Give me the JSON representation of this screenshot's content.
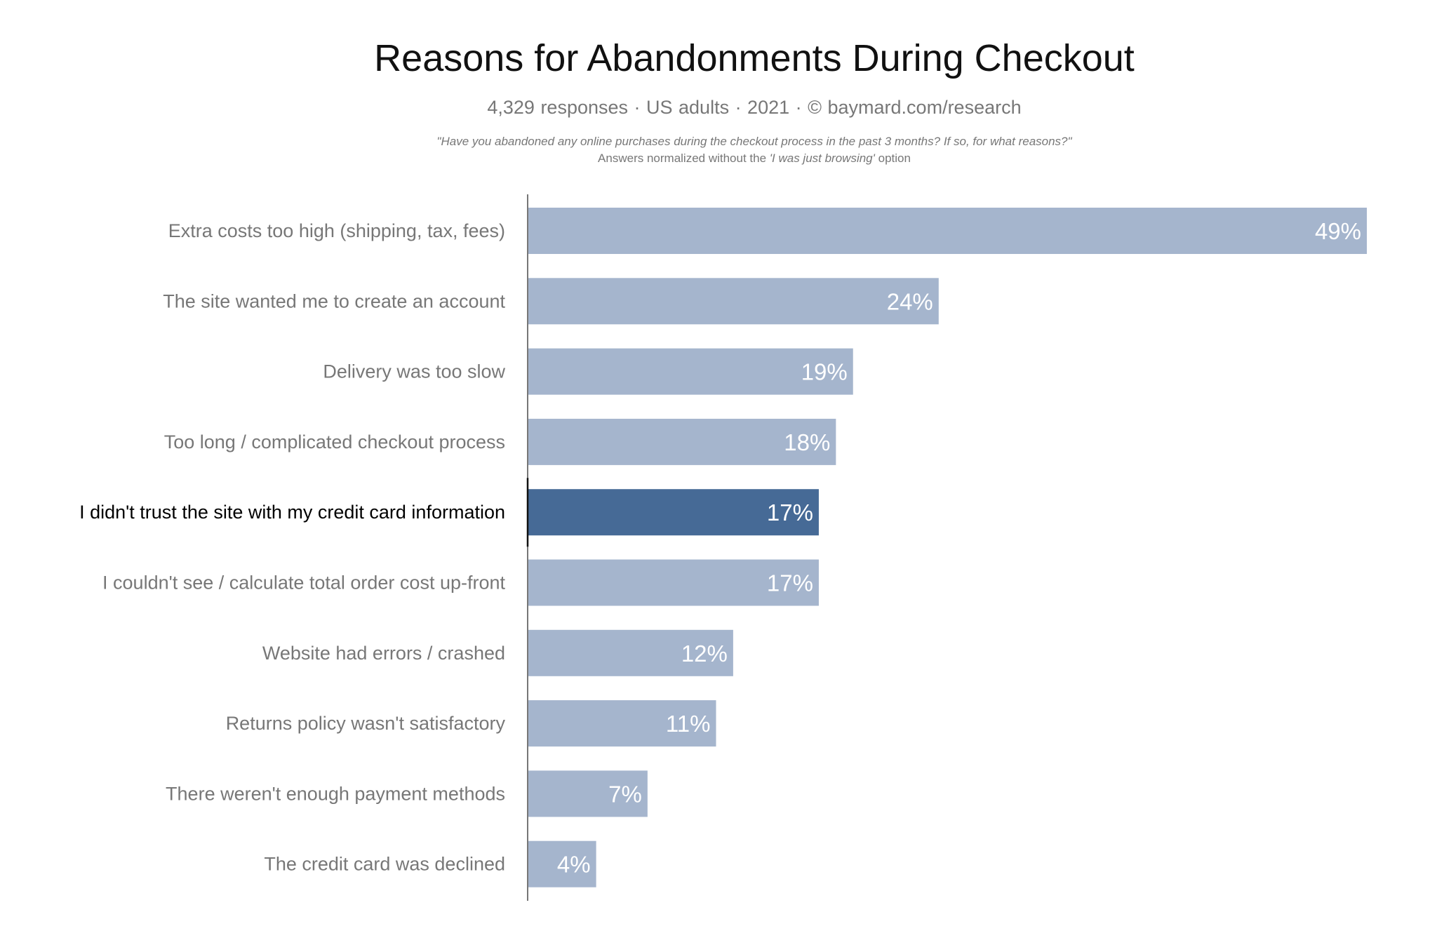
{
  "header": {
    "title": "Reasons for Abandonments During Checkout",
    "subtitle": "4,329 responses  ·  US adults  ·  2021  ·  ©  baymard.com/research",
    "question": "\"Have you abandoned any online purchases during the checkout process in the past 3 months? If so, for what reasons?\"",
    "note_prefix": "Answers normalized without the ",
    "note_italic": "'I was just browsing'",
    "note_suffix": " option"
  },
  "chart_data": {
    "type": "bar",
    "orientation": "horizontal",
    "title": "Reasons for Abandonments During Checkout",
    "categories": [
      "Extra costs too high (shipping, tax, fees)",
      "The site wanted me to create an account",
      "Delivery was too slow",
      "Too long / complicated checkout process",
      "I didn't trust the site with my credit card information",
      "I couldn't see / calculate total order cost up-front",
      "Website had errors / crashed",
      "Returns policy wasn't satisfactory",
      "There weren't enough payment methods",
      "The credit card was declined"
    ],
    "values": [
      49,
      24,
      19,
      18,
      17,
      17,
      12,
      11,
      7,
      4
    ],
    "data_labels": [
      "49%",
      "24%",
      "19%",
      "18%",
      "17%",
      "17%",
      "12%",
      "11%",
      "7%",
      "4%"
    ],
    "unit": "%",
    "highlighted_index": 4,
    "xlim": [
      0,
      49
    ],
    "grid": false,
    "colors": {
      "bar": "#a5b5cd",
      "highlight": "#466a96",
      "label": "#777777",
      "highlight_label": "#000000"
    }
  }
}
